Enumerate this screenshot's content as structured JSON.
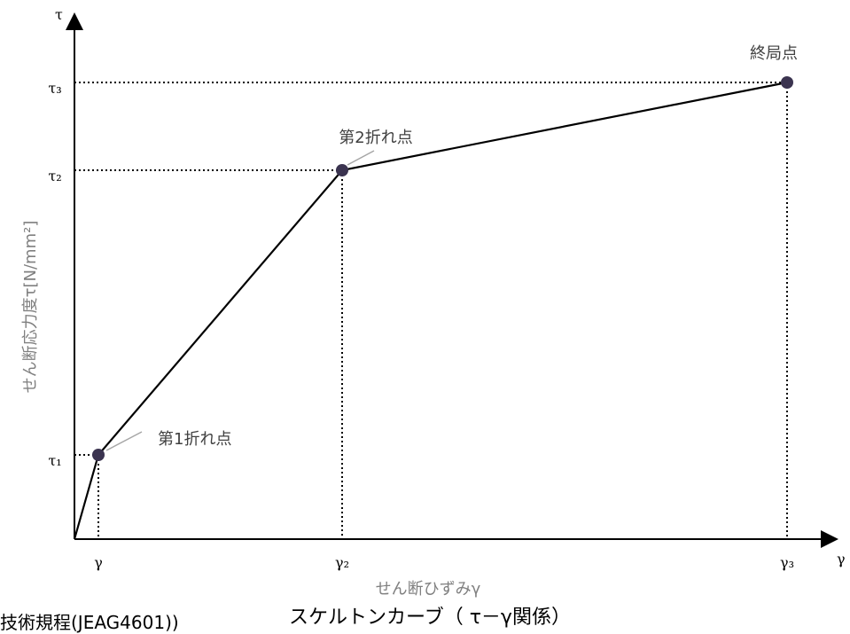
{
  "chart_data": {
    "type": "line",
    "title": "スケルトンカーブ（ τ－γ関係）",
    "xlabel": "せん断ひずみγ",
    "ylabel": "せん断応力度τ[N/mm²]",
    "x_axis_symbol": "γ",
    "y_axis_symbol": "τ",
    "x_ticks": [
      {
        "label": "γ",
        "x": 1
      },
      {
        "label": "γ₂",
        "x": 2
      },
      {
        "label": "γ₃",
        "x": 3
      }
    ],
    "y_ticks": [
      {
        "label": "τ₁",
        "y": 1
      },
      {
        "label": "τ₂",
        "y": 2
      },
      {
        "label": "τ₃",
        "y": 3
      }
    ],
    "series": [
      {
        "points": [
          {
            "x": 0,
            "y": 0,
            "label": ""
          },
          {
            "x": 1,
            "y": 1,
            "label": "第1折れ点"
          },
          {
            "x": 2,
            "y": 2,
            "label": "第2折れ点"
          },
          {
            "x": 3,
            "y": 3,
            "label": "終局点"
          }
        ]
      }
    ]
  },
  "footer": {
    "partial_text": "技術規程(JEAG4601))"
  },
  "colors": {
    "line": "#000000",
    "point": "#3b3450",
    "label_text": "#404040",
    "axis_label_text": "#808080",
    "leader": "#a6a6a6"
  }
}
